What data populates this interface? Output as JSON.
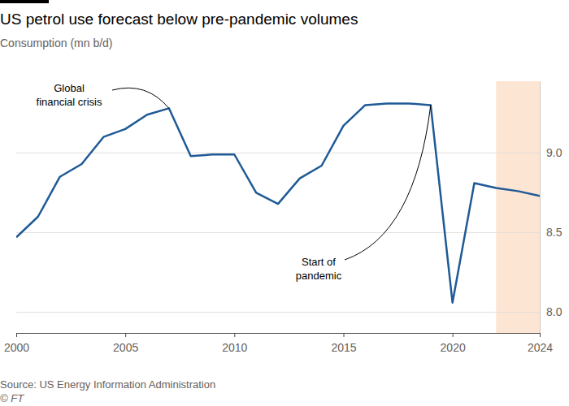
{
  "chart_data": {
    "type": "line",
    "title": "US petrol use forecast below pre-pandemic volumes",
    "subtitle": "Consumption (mn b/d)",
    "source": "Source: US Energy Information Administration",
    "credit": "© FT",
    "x": [
      2000,
      2001,
      2002,
      2003,
      2004,
      2005,
      2006,
      2007,
      2008,
      2009,
      2010,
      2011,
      2012,
      2013,
      2014,
      2015,
      2016,
      2017,
      2018,
      2019,
      2020,
      2021,
      2022,
      2023,
      2024
    ],
    "values": [
      8.47,
      8.6,
      8.85,
      8.93,
      9.1,
      9.15,
      9.24,
      9.28,
      8.98,
      8.99,
      8.99,
      8.75,
      8.68,
      8.84,
      8.92,
      9.17,
      9.3,
      9.31,
      9.31,
      9.3,
      8.06,
      8.81,
      8.78,
      8.76,
      8.73
    ],
    "color": "#1f5a96",
    "xlim": [
      2000,
      2024
    ],
    "xticks": [
      2000,
      2005,
      2010,
      2015,
      2020,
      2024
    ],
    "ylim": [
      7.87,
      9.45
    ],
    "yticks": [
      {
        "value": 8,
        "label": "8.0"
      },
      8.5,
      {
        "value": 9,
        "label": "9.0"
      }
    ],
    "grid": true,
    "shaded_x": [
      2022,
      2024
    ],
    "annotations": [
      {
        "text": [
          "Global",
          "financial crisis"
        ],
        "x": 2007
      },
      {
        "text": [
          "Start of",
          "pandemic"
        ],
        "x": 2019
      }
    ]
  }
}
